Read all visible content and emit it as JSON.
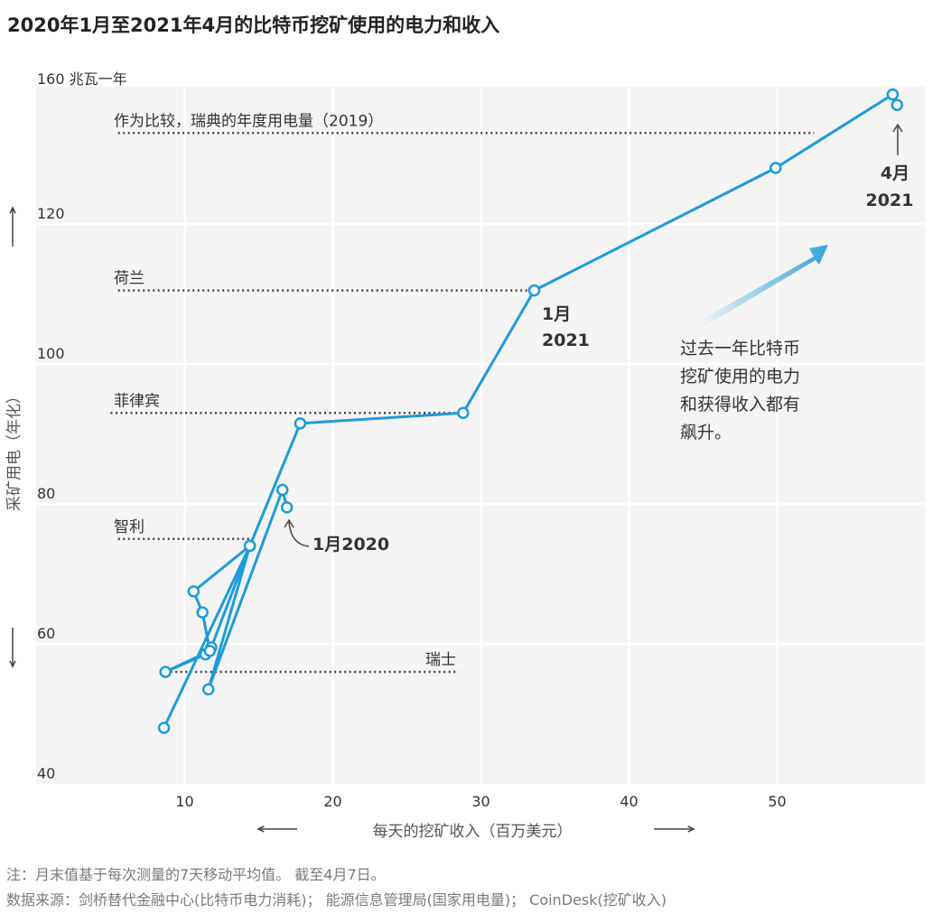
{
  "title": "2020年1月至2021年4月的比特币挖矿使用的电力和收入",
  "notes": [
    "注：月末值基于每次测量的7天移动平均值。 截至4月7日。",
    "数据来源：剑桥替代金融中心(比特币电力消耗)； 能源信息管理局(国家用电量)； CoinDesk(挖矿收入)"
  ],
  "colors": {
    "series": "#1e9bd7",
    "panel": "#f3f4f3",
    "grid": "#ffffff",
    "reference": "#444444",
    "text": "#333333",
    "axis_label": "#555555"
  },
  "chart_data": {
    "type": "line",
    "xlabel": "每天的挖矿收入（百万美元）",
    "ylabel": "采矿用电（年化）",
    "xlim": [
      0,
      60
    ],
    "ylim": [
      40,
      160
    ],
    "x_ticks": [
      {
        "value": 10,
        "label": "10"
      },
      {
        "value": 20,
        "label": "20"
      },
      {
        "value": 30,
        "label": "30"
      },
      {
        "value": 40,
        "label": "40"
      },
      {
        "value": 50,
        "label": "50"
      }
    ],
    "y_ticks": [
      {
        "value": 40,
        "label": "40"
      },
      {
        "value": 60,
        "label": "60"
      },
      {
        "value": 80,
        "label": "80"
      },
      {
        "value": 100,
        "label": "100"
      },
      {
        "value": 120,
        "label": "120"
      },
      {
        "value": 160,
        "label": "160 兆瓦一年"
      }
    ],
    "grid": true,
    "series": [
      {
        "points": [
          {
            "x": 16.9,
            "y": 79.5
          },
          {
            "x": 16.6,
            "y": 82
          },
          {
            "x": 11.6,
            "y": 53.5
          },
          {
            "x": 14.4,
            "y": 74
          },
          {
            "x": 8.6,
            "y": 48
          },
          {
            "x": 14.4,
            "y": 74
          },
          {
            "x": 11.8,
            "y": 59.5
          },
          {
            "x": 11.4,
            "y": 58.5
          },
          {
            "x": 8.7,
            "y": 56
          },
          {
            "x": 11.7,
            "y": 59
          },
          {
            "x": 11.2,
            "y": 64.5
          },
          {
            "x": 10.6,
            "y": 67.5
          },
          {
            "x": 14.4,
            "y": 74
          },
          {
            "x": 17.8,
            "y": 91.5
          },
          {
            "x": 28.8,
            "y": 93
          },
          {
            "x": 33.6,
            "y": 110.5
          },
          {
            "x": 49.9,
            "y": 128
          },
          {
            "x": 57.8,
            "y": 138.5
          },
          {
            "x": 58.1,
            "y": 137
          }
        ]
      }
    ],
    "reference_lines": [
      {
        "label": "作为比较，瑞典的年度用电量（2019）",
        "y": 133,
        "x_start": 5.5,
        "x_end": 52.5
      },
      {
        "label": "荷兰",
        "y": 110.5,
        "x_start": 5.5,
        "x_end": 33.6
      },
      {
        "label": "菲律宾",
        "y": 93,
        "x_start": 5,
        "x_end": 28.8
      },
      {
        "label": "智利",
        "y": 75,
        "x_start": 5.5,
        "x_end": 14.4
      },
      {
        "label": "瑞士",
        "y": 56,
        "x_start": 8.7,
        "x_end": 28.5
      }
    ],
    "annotations": [
      {
        "id": "jan2020",
        "text": "1月2020",
        "x": 17,
        "y": 76
      },
      {
        "id": "jan2021",
        "lines": [
          "1月",
          "2021"
        ],
        "x": 33.6,
        "y": 110.5
      },
      {
        "id": "apr2021",
        "lines": [
          "4月",
          "2021"
        ],
        "x": 58.1,
        "y": 137
      }
    ],
    "callout": [
      "过去一年比特币",
      "挖矿使用的电力",
      "和获得收入都有",
      "飙升。"
    ]
  }
}
